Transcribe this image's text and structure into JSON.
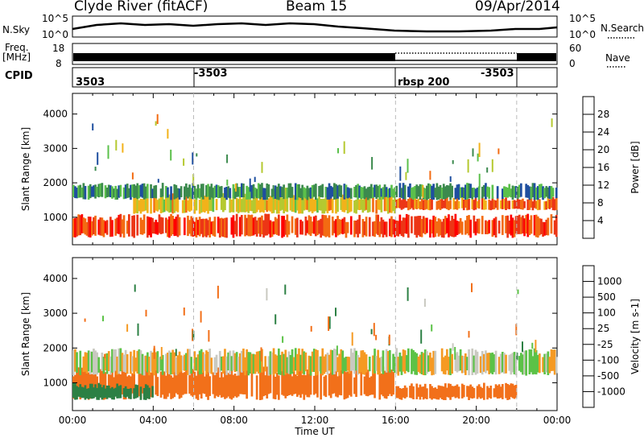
{
  "header": {
    "station": "Clyde River (fitACF)",
    "beam": "Beam 15",
    "date": "09/Apr/2014"
  },
  "side_labels": {
    "nsky": "N.Sky",
    "nsky_top": "10^5",
    "nsky_bottom": "10^0",
    "nsearch": "N.Search",
    "nsearch_top": "10^5",
    "nsearch_bottom": "10^0",
    "freq": "Freq.",
    "freq_unit": "[MHz]",
    "freq_top": "18",
    "freq_bottom": "8",
    "nave": "Nave",
    "nave_top": "60",
    "nave_bottom": "0",
    "cpid": "CPID"
  },
  "cpid_segments": [
    {
      "label": "3503",
      "start_hour": 0
    },
    {
      "label": "-3503",
      "start_hour": 6
    },
    {
      "label": "rbsp 200",
      "start_hour": 16
    },
    {
      "label": "-3503",
      "start_hour": 22
    }
  ],
  "colors": {
    "power_scale": [
      "#0000ff",
      "#1f4fa0",
      "#3c8a4e",
      "#5bc04b",
      "#b5c930",
      "#f2b21a",
      "#f36b12",
      "#ec3616",
      "#ff0000"
    ],
    "velocity_scale": [
      "#2a3fb0",
      "#2c8044",
      "#5cc247",
      "#c9c9c0",
      "#c9c9c0",
      "#f59a23",
      "#f2701a",
      "#e9371c",
      "#ff0000"
    ]
  },
  "chart_data": [
    {
      "type": "heatmap",
      "title": "Power",
      "ylabel": "Slant Range [km]",
      "xlabel": "",
      "ylim": [
        200,
        4600
      ],
      "yticks": [
        "1000",
        "2000",
        "3000",
        "4000"
      ],
      "xlim_hours": [
        0,
        24
      ],
      "colorbar": {
        "label": "Power [dB]",
        "range": [
          0,
          32
        ],
        "ticks": [
          "4",
          "8",
          "12",
          "16",
          "20",
          "24",
          "28"
        ]
      },
      "bands": [
        {
          "hours": [
            0,
            24
          ],
          "range_km": [
            400,
            1100
          ],
          "value": 26
        },
        {
          "hours": [
            3,
            16
          ],
          "range_km": [
            1100,
            1700
          ],
          "value": 18
        },
        {
          "hours": [
            16,
            24
          ],
          "range_km": [
            1200,
            1600
          ],
          "value": 24
        },
        {
          "hours": [
            0,
            24
          ],
          "range_km": [
            1500,
            2000
          ],
          "value": 9
        }
      ]
    },
    {
      "type": "heatmap",
      "title": "Velocity",
      "ylabel": "Slant Range [km]",
      "xlabel": "Time UT",
      "ylim": [
        200,
        4600
      ],
      "yticks": [
        "1000",
        "2000",
        "3000",
        "4000"
      ],
      "xlim_hours": [
        0,
        24
      ],
      "xticks": [
        "00:00",
        "04:00",
        "08:00",
        "12:00",
        "16:00",
        "20:00",
        "00:00"
      ],
      "colorbar": {
        "label": "Velocity [m s-1]",
        "ticks": [
          "1000",
          "500",
          "100",
          "25",
          "-25",
          "-100",
          "-500",
          "-1000"
        ]
      },
      "bands": [
        {
          "hours": [
            0,
            16
          ],
          "range_km": [
            500,
            1500
          ],
          "value": -250
        },
        {
          "hours": [
            16,
            22
          ],
          "range_km": [
            500,
            1000
          ],
          "value": -250
        },
        {
          "hours": [
            0,
            24
          ],
          "range_km": [
            1200,
            2000
          ],
          "value": 0
        },
        {
          "hours": [
            0,
            4
          ],
          "range_km": [
            500,
            1000
          ],
          "value": 300
        }
      ]
    }
  ]
}
